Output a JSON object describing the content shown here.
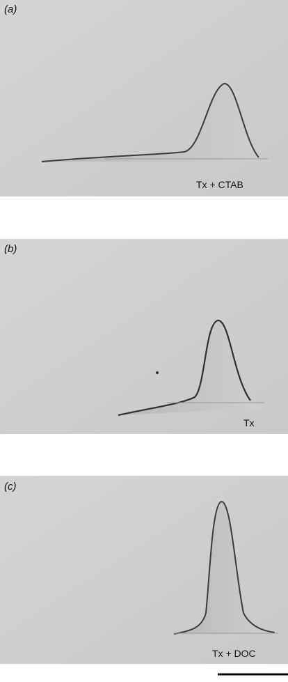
{
  "panels": [
    {
      "label": "(a)",
      "caption": "Tx + CTAB"
    },
    {
      "label": "(b)",
      "caption": "Tx"
    },
    {
      "label": "(c)",
      "caption": "Tx + DOC"
    }
  ]
}
